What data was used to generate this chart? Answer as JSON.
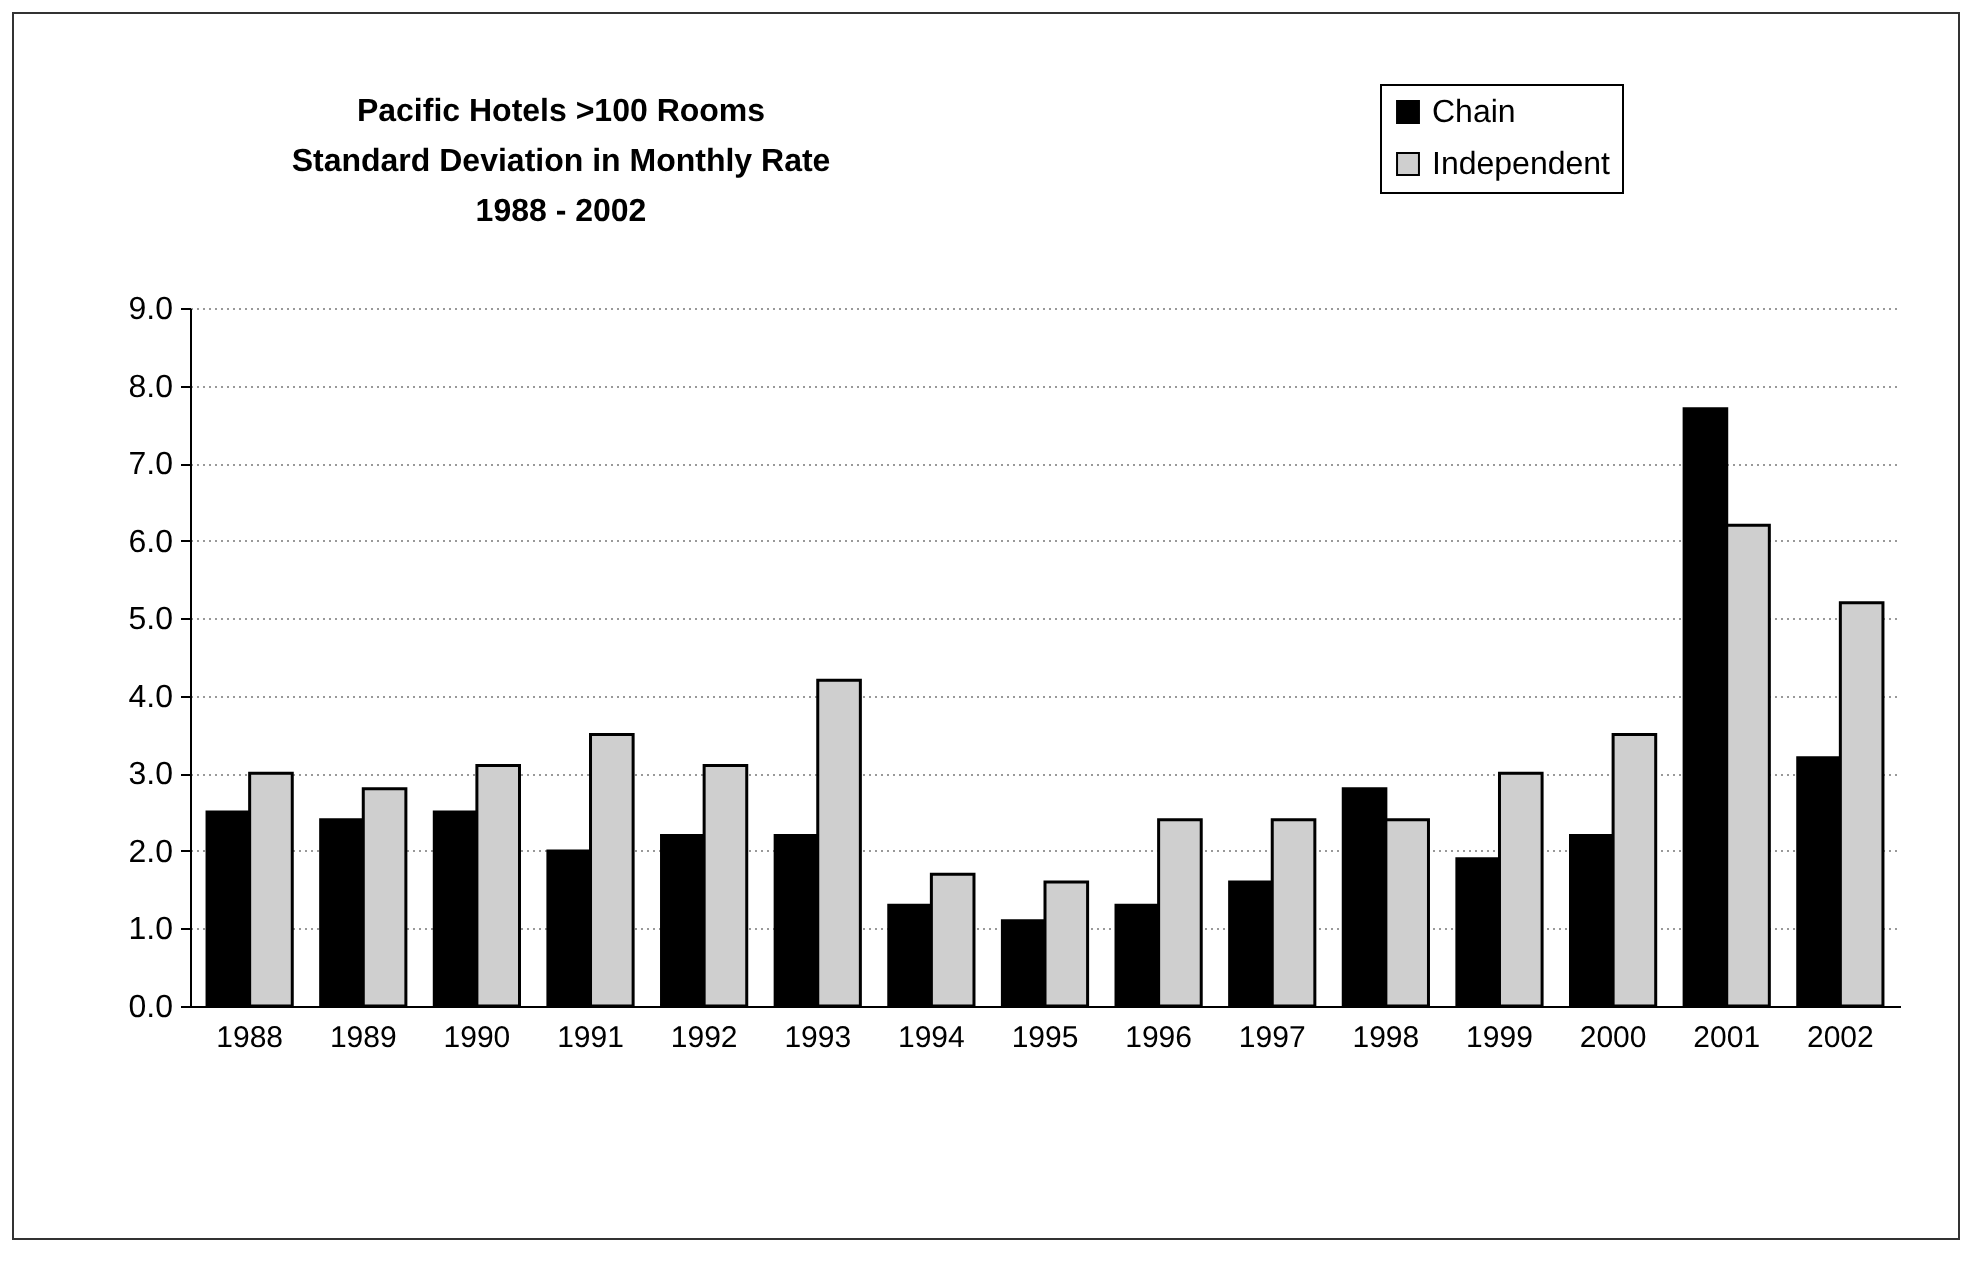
{
  "chart_data": {
    "type": "bar",
    "title": "Pacific Hotels >100 Rooms\nStandard Deviation in Monthly Rate\n1988 - 2002",
    "categories": [
      "1988",
      "1989",
      "1990",
      "1991",
      "1992",
      "1993",
      "1994",
      "1995",
      "1996",
      "1997",
      "1998",
      "1999",
      "2000",
      "2001",
      "2002"
    ],
    "series": [
      {
        "name": "Chain",
        "color": "#000000",
        "values": [
          2.5,
          2.4,
          2.5,
          2.0,
          2.2,
          2.2,
          1.3,
          1.1,
          1.3,
          1.6,
          2.8,
          1.9,
          2.2,
          7.7,
          3.2
        ]
      },
      {
        "name": "Independent",
        "color": "#cfcfcf",
        "values": [
          3.0,
          2.8,
          3.1,
          3.5,
          3.1,
          4.2,
          1.7,
          1.6,
          2.4,
          2.4,
          2.4,
          3.0,
          3.5,
          6.2,
          5.2
        ]
      }
    ],
    "ylim": [
      0,
      9
    ],
    "yticks": [
      {
        "value": 0,
        "label": "0.0"
      },
      {
        "value": 1,
        "label": "1.0"
      },
      {
        "value": 2,
        "label": "2.0"
      },
      {
        "value": 3,
        "label": "3.0"
      },
      {
        "value": 4,
        "label": "4.0"
      },
      {
        "value": 5,
        "label": "5.0"
      },
      {
        "value": 6,
        "label": "6.0"
      },
      {
        "value": 7,
        "label": "7.0"
      },
      {
        "value": 8,
        "label": "8.0"
      },
      {
        "value": 9,
        "label": "9.0"
      }
    ],
    "grid": "y",
    "legend": "top right"
  }
}
